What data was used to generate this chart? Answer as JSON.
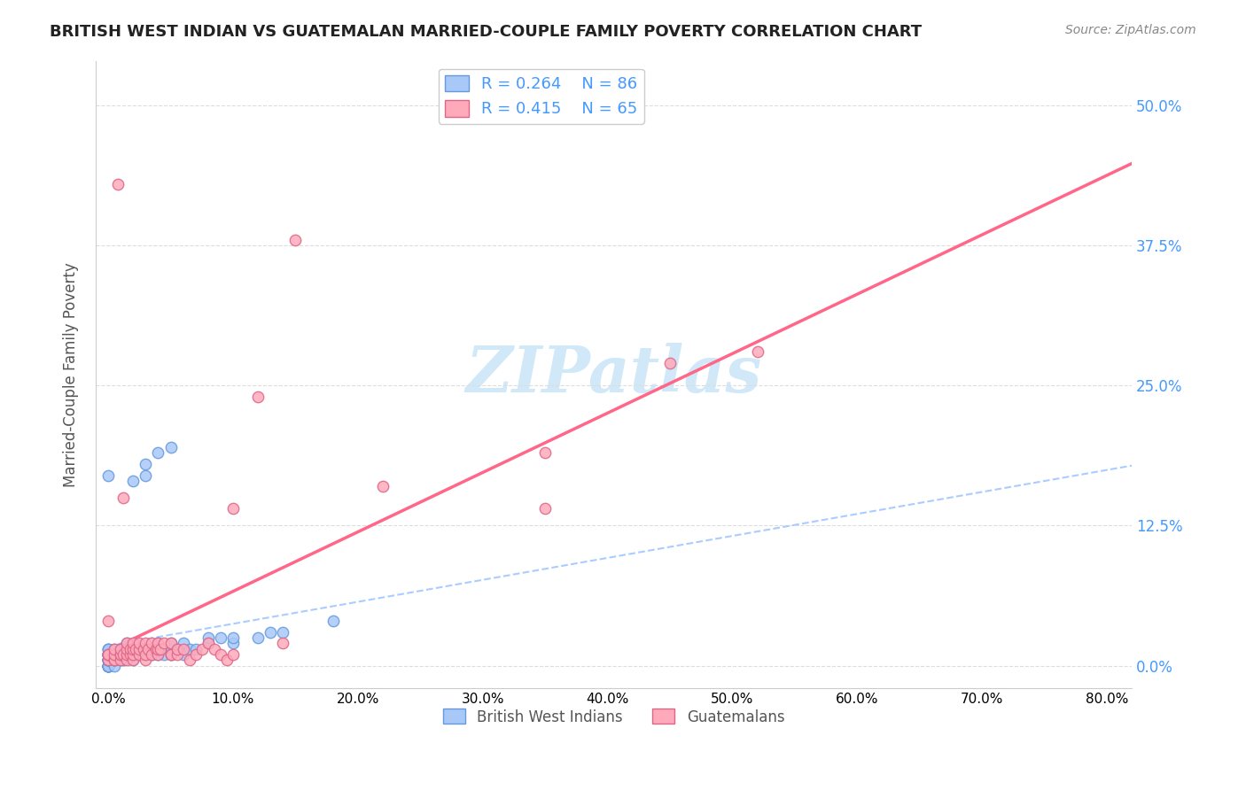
{
  "title": "BRITISH WEST INDIAN VS GUATEMALAN MARRIED-COUPLE FAMILY POVERTY CORRELATION CHART",
  "source": "Source: ZipAtlas.com",
  "xlabel_ticks": [
    "0.0%",
    "10.0%",
    "20.0%",
    "30.0%",
    "40.0%",
    "50.0%",
    "60.0%",
    "70.0%",
    "80.0%"
  ],
  "xlabel_vals": [
    0.0,
    0.1,
    0.2,
    0.3,
    0.4,
    0.5,
    0.6,
    0.7,
    0.8
  ],
  "ylabel_ticks": [
    "0.0%",
    "12.5%",
    "25.0%",
    "37.5%",
    "50.0%"
  ],
  "ylabel_vals": [
    0.0,
    0.125,
    0.25,
    0.375,
    0.5
  ],
  "xlim": [
    -0.01,
    0.82
  ],
  "ylim": [
    -0.02,
    0.54
  ],
  "ylabel": "Married-Couple Family Poverty",
  "R_bwi": 0.264,
  "N_bwi": 86,
  "R_guat": 0.415,
  "N_guat": 65,
  "bwi_color": "#a8c8f8",
  "bwi_edge_color": "#6699dd",
  "guat_color": "#ffaabb",
  "guat_edge_color": "#dd6688",
  "trendline_bwi_color": "#aaccff",
  "trendline_guat_color": "#ff6688",
  "watermark_color": "#d0e8f8",
  "grid_color": "#dddddd",
  "axis_label_color": "#4499ff",
  "bwi_scatter_x": [
    0.0,
    0.0,
    0.0,
    0.0,
    0.0,
    0.0,
    0.0,
    0.0,
    0.0,
    0.0,
    0.0,
    0.0,
    0.0,
    0.0,
    0.0,
    0.0,
    0.0,
    0.0,
    0.0,
    0.0,
    0.0,
    0.0,
    0.0,
    0.0,
    0.0,
    0.0,
    0.0,
    0.0,
    0.0,
    0.0,
    0.005,
    0.005,
    0.005,
    0.005,
    0.005,
    0.005,
    0.005,
    0.01,
    0.01,
    0.01,
    0.01,
    0.01,
    0.012,
    0.012,
    0.012,
    0.015,
    0.015,
    0.015,
    0.015,
    0.02,
    0.02,
    0.02,
    0.02,
    0.025,
    0.025,
    0.025,
    0.03,
    0.03,
    0.035,
    0.04,
    0.04,
    0.04,
    0.045,
    0.05,
    0.05,
    0.05,
    0.055,
    0.06,
    0.06,
    0.065,
    0.07,
    0.08,
    0.08,
    0.09,
    0.1,
    0.1,
    0.12,
    0.13,
    0.14,
    0.18,
    0.0,
    0.02,
    0.03,
    0.03,
    0.04,
    0.05
  ],
  "bwi_scatter_y": [
    0.0,
    0.0,
    0.0,
    0.0,
    0.0,
    0.0,
    0.0,
    0.0,
    0.0,
    0.0,
    0.005,
    0.005,
    0.005,
    0.005,
    0.005,
    0.005,
    0.005,
    0.01,
    0.01,
    0.01,
    0.01,
    0.01,
    0.01,
    0.01,
    0.01,
    0.01,
    0.01,
    0.015,
    0.015,
    0.015,
    0.0,
    0.005,
    0.005,
    0.01,
    0.01,
    0.01,
    0.015,
    0.005,
    0.01,
    0.01,
    0.01,
    0.015,
    0.005,
    0.01,
    0.015,
    0.01,
    0.01,
    0.015,
    0.02,
    0.005,
    0.01,
    0.01,
    0.015,
    0.01,
    0.01,
    0.015,
    0.01,
    0.015,
    0.01,
    0.01,
    0.015,
    0.02,
    0.01,
    0.01,
    0.015,
    0.02,
    0.015,
    0.01,
    0.02,
    0.015,
    0.015,
    0.02,
    0.025,
    0.025,
    0.02,
    0.025,
    0.025,
    0.03,
    0.03,
    0.04,
    0.17,
    0.165,
    0.17,
    0.18,
    0.19,
    0.195
  ],
  "guat_scatter_x": [
    0.0,
    0.0,
    0.0,
    0.0,
    0.005,
    0.005,
    0.005,
    0.005,
    0.008,
    0.01,
    0.01,
    0.01,
    0.01,
    0.012,
    0.012,
    0.015,
    0.015,
    0.015,
    0.015,
    0.018,
    0.018,
    0.02,
    0.02,
    0.02,
    0.02,
    0.022,
    0.025,
    0.025,
    0.025,
    0.028,
    0.03,
    0.03,
    0.03,
    0.032,
    0.035,
    0.035,
    0.038,
    0.04,
    0.04,
    0.04,
    0.042,
    0.045,
    0.05,
    0.05,
    0.05,
    0.055,
    0.055,
    0.06,
    0.065,
    0.07,
    0.075,
    0.08,
    0.085,
    0.09,
    0.095,
    0.1,
    0.1,
    0.12,
    0.14,
    0.15,
    0.22,
    0.35,
    0.35,
    0.45,
    0.52
  ],
  "guat_scatter_y": [
    0.005,
    0.01,
    0.01,
    0.04,
    0.005,
    0.005,
    0.01,
    0.015,
    0.43,
    0.005,
    0.01,
    0.01,
    0.015,
    0.01,
    0.15,
    0.005,
    0.01,
    0.015,
    0.02,
    0.01,
    0.015,
    0.005,
    0.01,
    0.015,
    0.02,
    0.015,
    0.01,
    0.015,
    0.02,
    0.015,
    0.005,
    0.01,
    0.02,
    0.015,
    0.01,
    0.02,
    0.015,
    0.01,
    0.015,
    0.02,
    0.015,
    0.02,
    0.01,
    0.01,
    0.02,
    0.01,
    0.015,
    0.015,
    0.005,
    0.01,
    0.015,
    0.02,
    0.015,
    0.01,
    0.005,
    0.01,
    0.14,
    0.24,
    0.02,
    0.38,
    0.16,
    0.19,
    0.14,
    0.27,
    0.28
  ]
}
